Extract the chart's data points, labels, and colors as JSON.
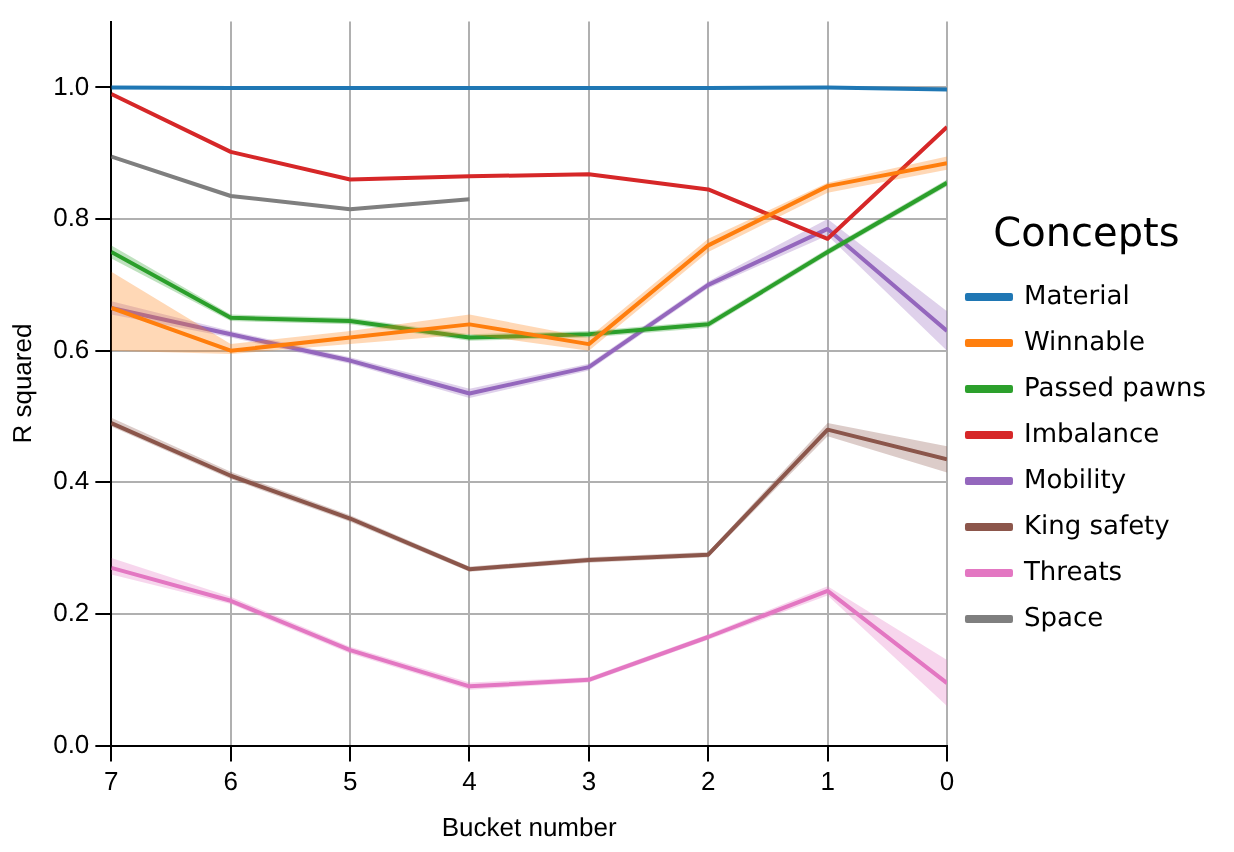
{
  "chart_data": {
    "type": "line",
    "xlabel": "Bucket number",
    "ylabel": "R squared",
    "legend_title": "Concepts",
    "legend": "right",
    "grid": true,
    "marker": "none",
    "line_style": "solid",
    "x": [
      7,
      6,
      5,
      4,
      3,
      2,
      1,
      0
    ],
    "xlim": [
      7,
      0
    ],
    "xticks": [
      7,
      6,
      5,
      4,
      3,
      2,
      1,
      0
    ],
    "ylim": [
      0,
      1.1
    ],
    "yticks": [
      {
        "value": 0,
        "label": "0.0"
      },
      {
        "value": 0.2,
        "label": "0.2"
      },
      {
        "value": 0.4,
        "label": "0.4"
      },
      {
        "value": 0.6,
        "label": "0.6"
      },
      {
        "value": 0.8,
        "label": "0.8"
      },
      {
        "value": 1,
        "label": "1.0"
      }
    ],
    "series": [
      {
        "name": "Material",
        "color": "#1f77b4",
        "values": [
          1.0,
          0.999,
          0.999,
          0.999,
          0.999,
          0.999,
          1.0,
          0.997
        ]
      },
      {
        "name": "Winnable",
        "color": "#ff7f0e",
        "values": [
          0.665,
          0.6,
          0.62,
          0.64,
          0.61,
          0.76,
          0.85,
          0.885
        ],
        "lower": [
          0.6,
          0.595,
          0.61,
          0.625,
          0.6,
          0.75,
          0.84,
          0.875
        ],
        "upper": [
          0.72,
          0.61,
          0.63,
          0.655,
          0.62,
          0.77,
          0.855,
          0.895
        ]
      },
      {
        "name": "Passed pawns",
        "color": "#2ca02c",
        "values": [
          0.75,
          0.65,
          0.645,
          0.62,
          0.625,
          0.64,
          0.75,
          0.855
        ],
        "lower": [
          0.74,
          0.645,
          0.64,
          0.615,
          0.62,
          0.635,
          0.745,
          0.85
        ],
        "upper": [
          0.76,
          0.655,
          0.65,
          0.625,
          0.63,
          0.645,
          0.755,
          0.86
        ]
      },
      {
        "name": "Imbalance",
        "color": "#d62728",
        "values": [
          0.99,
          0.902,
          0.86,
          0.865,
          0.868,
          0.845,
          0.77,
          0.94
        ]
      },
      {
        "name": "Mobility",
        "color": "#9467bd",
        "values": [
          0.665,
          0.625,
          0.585,
          0.535,
          0.575,
          0.7,
          0.785,
          0.63
        ],
        "lower": [
          0.655,
          0.62,
          0.58,
          0.528,
          0.57,
          0.695,
          0.775,
          0.6
        ],
        "upper": [
          0.675,
          0.63,
          0.59,
          0.542,
          0.58,
          0.705,
          0.8,
          0.66
        ]
      },
      {
        "name": "King safety",
        "color": "#8c564b",
        "values": [
          0.49,
          0.41,
          0.345,
          0.268,
          0.282,
          0.29,
          0.48,
          0.435
        ],
        "lower": [
          0.485,
          0.405,
          0.34,
          0.264,
          0.278,
          0.286,
          0.47,
          0.415
        ],
        "upper": [
          0.498,
          0.416,
          0.35,
          0.272,
          0.286,
          0.294,
          0.49,
          0.455
        ]
      },
      {
        "name": "Threats",
        "color": "#e377c2",
        "values": [
          0.27,
          0.22,
          0.145,
          0.09,
          0.1,
          0.165,
          0.235,
          0.095
        ],
        "lower": [
          0.26,
          0.215,
          0.14,
          0.085,
          0.096,
          0.161,
          0.228,
          0.06
        ],
        "upper": [
          0.285,
          0.226,
          0.15,
          0.096,
          0.104,
          0.169,
          0.242,
          0.13
        ]
      },
      {
        "name": "Space",
        "color": "#7f7f7f",
        "values": [
          0.895,
          0.835,
          0.815,
          0.83,
          null,
          null,
          null,
          null
        ]
      }
    ]
  }
}
